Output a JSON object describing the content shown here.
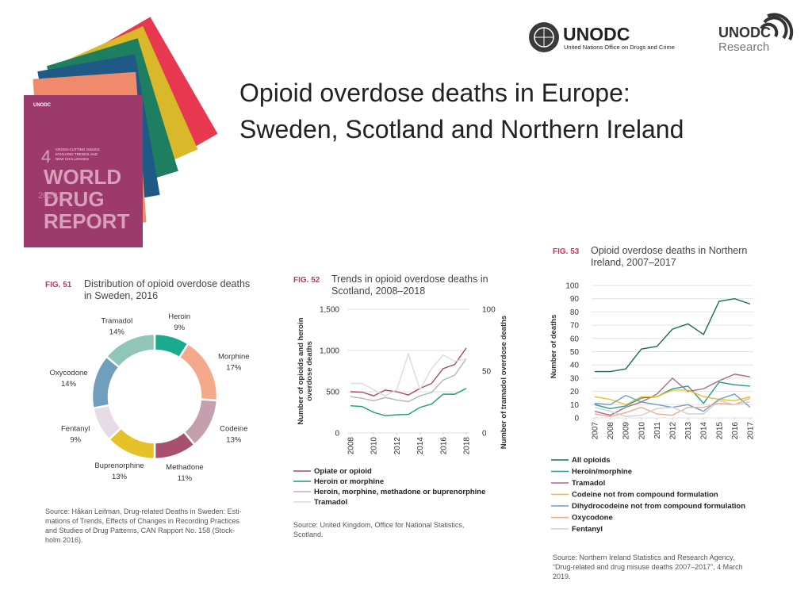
{
  "title": [
    "Opioid overdose deaths in Europe:",
    "Sweden, Scotland and Northern Ireland"
  ],
  "logo": {
    "name": "UNODC",
    "full_name": "United Nations Office on Drugs and Crime",
    "research_name": "UNODC",
    "research_label": "Research"
  },
  "cover": {
    "publisher": "UNODC",
    "volume": "4",
    "subtitle": [
      "CROSS-CUTTING ISSUES:",
      "EVOLVING TRENDS AND",
      "NEW CHALLENGES"
    ],
    "lines": [
      "WORLD",
      "DRUG",
      "REPORT"
    ],
    "year": "2020"
  },
  "chart_data": [
    {
      "type": "donut",
      "figure": "FIG. 51",
      "title": [
        "Distribution of opioid overdose deaths",
        "in Sweden, 2016"
      ],
      "categories": [
        "Heroin",
        "Morphine",
        "Codeine",
        "Methadone",
        "Buprenorphine",
        "Fentanyl",
        "Oxycodone",
        "Tramadol"
      ],
      "values": [
        9,
        17,
        13,
        11,
        13,
        9,
        14,
        14
      ],
      "value_labels": [
        "9%",
        "17%",
        "13%",
        "11%",
        "13%",
        "9%",
        "14%",
        "14%"
      ],
      "colors": [
        "#1aab8e",
        "#f4a98a",
        "#c4a0ae",
        "#a8506e",
        "#e6c229",
        "#e6dbe6",
        "#6f9fbd",
        "#8fc6b8"
      ],
      "source": [
        "Source: Håkan Leifman, Drug-related Deaths in Sweden: Esti-",
        "mations of Trends, Effects of Changes in Recording Practices",
        "and Studies of Drug Patterns, CAN Rapport No. 158 (Stock-",
        "holm 2016)."
      ]
    },
    {
      "type": "line",
      "figure": "FIG. 52",
      "title": [
        "Trends in opioid overdose deaths in",
        "Scotland, 2008–2018"
      ],
      "x": [
        2008,
        2009,
        2010,
        2011,
        2012,
        2013,
        2014,
        2015,
        2016,
        2017,
        2018
      ],
      "xlim": [
        2008,
        2018
      ],
      "xticks": [
        2008,
        2010,
        2012,
        2014,
        2016,
        2018
      ],
      "ylim": [
        0,
        1500
      ],
      "yticks": [
        0,
        500,
        {
          "value": 1000,
          "label": "1,000"
        },
        {
          "value": 1500,
          "label": "1,500"
        }
      ],
      "y2lim": [
        0,
        100
      ],
      "y2ticks": [
        0,
        50,
        100
      ],
      "y_label": [
        "Number of opioids and heroin",
        "overdose deaths"
      ],
      "y2_label": [
        "Number of tramadol overdose deaths"
      ],
      "grid": true,
      "series": [
        {
          "name": "Opiate or opioid",
          "color": "#a04a6e",
          "values": [
            500,
            495,
            450,
            520,
            500,
            460,
            540,
            600,
            780,
            830,
            1030
          ]
        },
        {
          "name": "Heroin or morphine",
          "color": "#1a9e78",
          "values": [
            330,
            320,
            250,
            210,
            220,
            225,
            310,
            350,
            470,
            470,
            540
          ]
        },
        {
          "name": "Heroin, morphine, methadone or buprenorphine",
          "color": "#b5b5b5",
          "values": [
            440,
            420,
            390,
            430,
            400,
            380,
            450,
            490,
            640,
            700,
            900
          ]
        },
        {
          "name": "Tramadol",
          "color": "#dcdcdc",
          "axis": "y2",
          "values": [
            40,
            40,
            35,
            30,
            35,
            64,
            35,
            52,
            63,
            58,
            60
          ]
        }
      ],
      "source": [
        "Source: United Kingdom, Office for National Statistics,",
        "Scotland."
      ]
    },
    {
      "type": "line",
      "figure": "FIG. 53",
      "title": [
        "Opioid overdose deaths in Northern",
        "Ireland, 2007–2017"
      ],
      "x": [
        2007,
        2008,
        2009,
        2010,
        2011,
        2012,
        2013,
        2014,
        2015,
        2016,
        2017
      ],
      "xlim": [
        2007,
        2017
      ],
      "xticks": [
        2007,
        2008,
        2009,
        2010,
        2011,
        2012,
        2013,
        2014,
        2015,
        2016,
        2017
      ],
      "ylim": [
        0,
        100
      ],
      "yticks": [
        0,
        10,
        20,
        30,
        40,
        50,
        60,
        70,
        80,
        90,
        100
      ],
      "y_label": [
        "Number of deaths"
      ],
      "grid": true,
      "series": [
        {
          "name": "All opioids",
          "color": "#1e6b5e",
          "values": [
            35,
            35,
            37,
            52,
            54,
            67,
            71,
            63,
            88,
            90,
            86
          ]
        },
        {
          "name": "Heroin/morphine",
          "color": "#2a9d8f",
          "values": [
            10,
            7,
            9,
            15,
            16,
            22,
            24,
            11,
            27,
            25,
            24
          ]
        },
        {
          "name": "Tramadol",
          "color": "#b0678a",
          "values": [
            5,
            2,
            8,
            12,
            18,
            30,
            20,
            22,
            28,
            33,
            31
          ]
        },
        {
          "name": "Codeine not from compound formulation",
          "color": "#e6c229",
          "values": [
            16,
            14,
            10,
            16,
            16,
            21,
            21,
            16,
            14,
            13,
            16
          ]
        },
        {
          "name": "Dihydrocodeine not from compound formulation",
          "color": "#6f9fbd",
          "values": [
            11,
            10,
            17,
            12,
            10,
            8,
            10,
            5,
            14,
            18,
            8
          ]
        },
        {
          "name": "Oxycodone",
          "color": "#f4a98a",
          "values": [
            3,
            1,
            4,
            8,
            3,
            2,
            8,
            8,
            11,
            10,
            15
          ]
        },
        {
          "name": "Fentanyl",
          "color": "#cfcfcf",
          "values": [
            8,
            5,
            1,
            2,
            7,
            8,
            3,
            3,
            13,
            10,
            12
          ]
        }
      ],
      "source": [
        "Source: Northern Ireland Statistics and Research Agency,",
        "“Drug-related and drug misuse deaths 2007–2017”, 4 March",
        "2019."
      ]
    }
  ]
}
